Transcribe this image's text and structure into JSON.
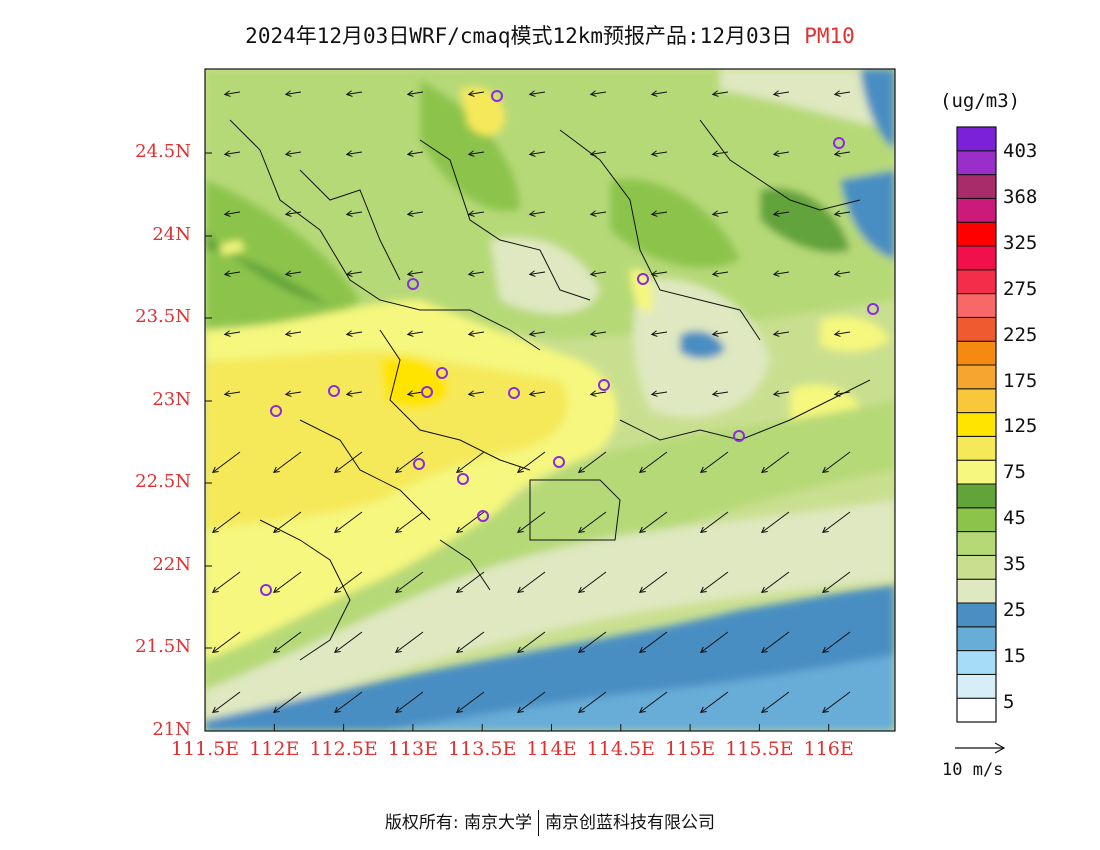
{
  "title": {
    "main": "2024年12月03日WRF/cmaq模式12km预报产品:12月03日",
    "pollutant": "PM10"
  },
  "axes": {
    "y_ticks": [
      "24.5N",
      "24N",
      "23.5N",
      "23N",
      "22.5N",
      "22N",
      "21.5N",
      "21N"
    ],
    "x_ticks": [
      "111.5E",
      "112E",
      "112.5E",
      "113E",
      "113.5E",
      "114E",
      "114.5E",
      "115E",
      "115.5E",
      "116E"
    ]
  },
  "legend": {
    "unit": "(ug/m3)",
    "labels": [
      "403",
      "368",
      "325",
      "275",
      "225",
      "175",
      "125",
      "75",
      "45",
      "35",
      "25",
      "15",
      "5"
    ],
    "colors": [
      "#ffffff",
      "#d7eef8",
      "#a6dcf5",
      "#68acd8",
      "#4a8ec2",
      "#dfe8c0",
      "#c9df90",
      "#b6d977",
      "#8cc44b",
      "#62a33a",
      "#f5f77e",
      "#f5e95a",
      "#ffe400",
      "#f9c83a",
      "#f5a630",
      "#f58a10",
      "#f05a30",
      "#f86868",
      "#f42e4a",
      "#f2104c",
      "#ff0000",
      "#cc1a7a",
      "#a82c6a",
      "#9a2ec8",
      "#7b22d8"
    ]
  },
  "wind_reference": "10 m/s",
  "footer": {
    "copyright_label": "版权所有: 南京大学",
    "company": "南京创蓝科技有限公司"
  },
  "stations_icon": "circle-marker-icon",
  "arrow_icon": "wind-arrow-icon"
}
